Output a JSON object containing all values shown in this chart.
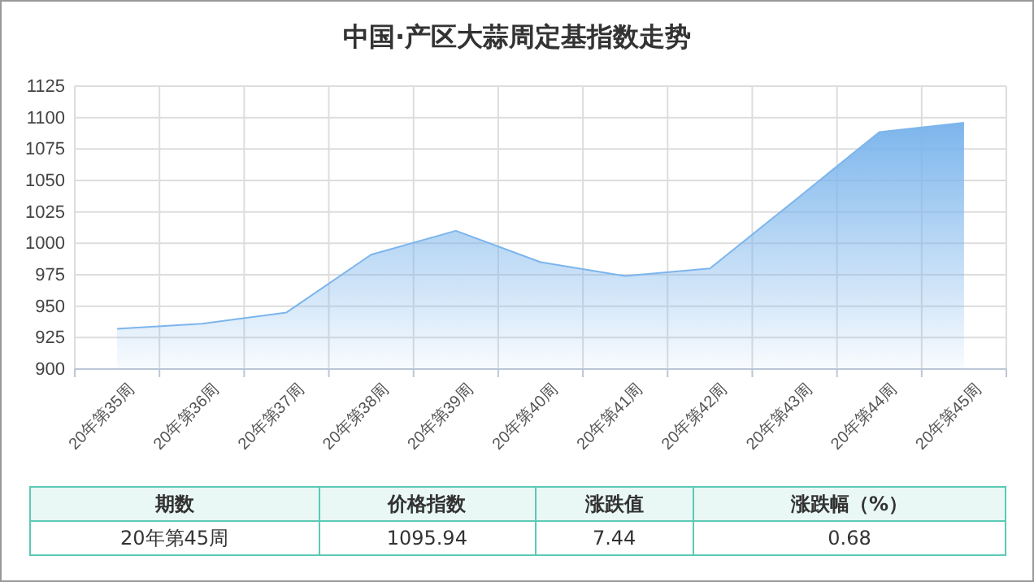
{
  "chart_data": [
    {
      "type": "area",
      "title": "中国·产区大蒜周定基指数走势",
      "categories": [
        "20年第35周",
        "20年第36周",
        "20年第37周",
        "20年第38周",
        "20年第39周",
        "20年第40周",
        "20年第41周",
        "20年第42周",
        "20年第43周",
        "20年第44周",
        "20年第45周"
      ],
      "series": [
        {
          "color": "#7cb5ec",
          "values": [
            932,
            936,
            945,
            991,
            1010,
            985,
            974,
            980,
            1034,
            1088.5,
            1095.94
          ]
        }
      ],
      "ylim": [
        900,
        1125
      ],
      "yticks": [
        900,
        925,
        950,
        975,
        1000,
        1025,
        1050,
        1075,
        1100,
        1125
      ],
      "grid": true
    },
    {
      "type": "other",
      "annotations": [
        "期数",
        "价格指数",
        "涨跌值",
        "涨跌幅（%）",
        "20年第45周",
        "1095.94",
        "7.44",
        "0.68"
      ]
    }
  ]
}
